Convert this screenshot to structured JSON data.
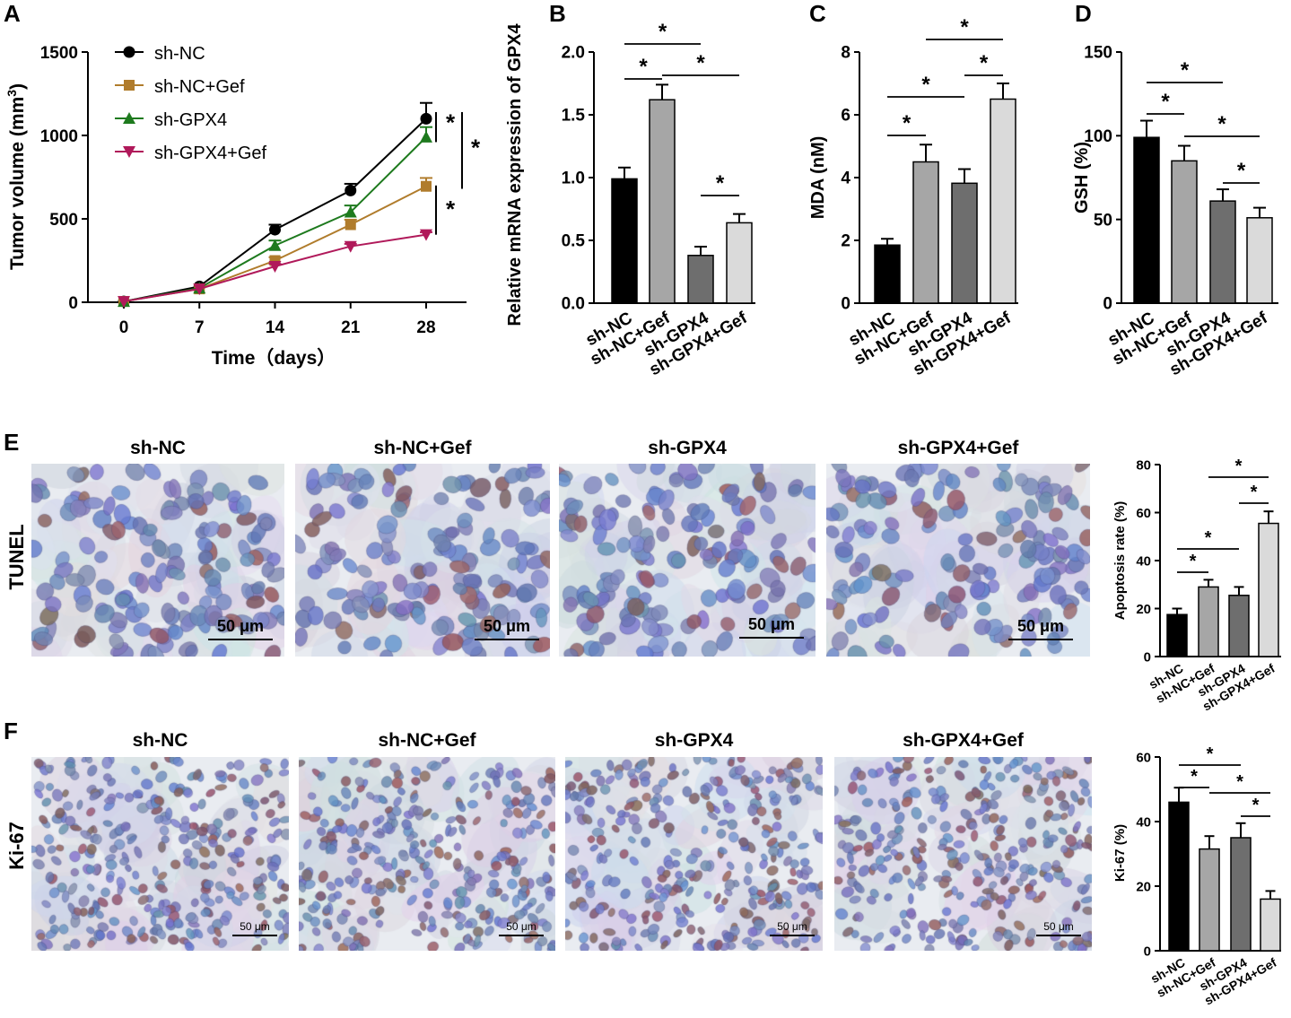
{
  "panels": {
    "A": "A",
    "B": "B",
    "C": "C",
    "D": "D",
    "E": "E",
    "F": "F"
  },
  "colors": {
    "sh_nc": "#000000",
    "sh_nc_gef": "#b07c2c",
    "sh_gpx4": "#1e7a1e",
    "sh_gpx4_gef": "#b0195a",
    "bar_sh_nc": "#000000",
    "bar_sh_nc_gef": "#a6a6a6",
    "bar_sh_gpx4": "#6e6e6e",
    "bar_sh_gpx4_gef": "#dadada"
  },
  "row_labels": {
    "tunel": "TUNEL",
    "ki67": "Ki-67"
  },
  "image_titles": {
    "E": [
      "sh-NC",
      "sh-NC+Gef",
      "sh-GPX4",
      "sh-GPX4+Gef"
    ],
    "F": [
      "sh-NC",
      "sh-NC+Gef",
      "sh-GPX4",
      "sh-GPX4+Gef"
    ]
  },
  "scale_bars": {
    "E": "50 μm",
    "F": "50 μm"
  },
  "chart_data": [
    {
      "id": "A",
      "type": "line",
      "xlabel": "Time（days）",
      "ylabel": "Tumor volume (mm3)",
      "x": [
        0,
        7,
        14,
        21,
        28
      ],
      "xlim": [
        0,
        28
      ],
      "ylim": [
        0,
        1500
      ],
      "yticks": [
        0,
        500,
        1000,
        1500
      ],
      "legend": "top-left",
      "series": [
        {
          "name": "sh-NC",
          "marker": "circle",
          "values": [
            5,
            95,
            435,
            670,
            1100
          ],
          "errors": [
            5,
            10,
            30,
            40,
            95
          ]
        },
        {
          "name": "sh-NC+Gef",
          "marker": "square",
          "values": [
            5,
            80,
            250,
            465,
            695
          ],
          "errors": [
            5,
            8,
            20,
            30,
            50
          ]
        },
        {
          "name": "sh-GPX4",
          "marker": "triangle-up",
          "values": [
            5,
            85,
            340,
            540,
            990
          ],
          "errors": [
            5,
            8,
            30,
            40,
            60
          ]
        },
        {
          "name": "sh-GPX4+Gef",
          "marker": "triangle-down",
          "values": [
            5,
            80,
            215,
            335,
            405
          ],
          "errors": [
            5,
            6,
            15,
            15,
            15
          ]
        }
      ],
      "annotations": [
        "*",
        "*",
        "*"
      ]
    },
    {
      "id": "B",
      "type": "bar",
      "ylabel": "Relative mRNA expression of GPX4",
      "categories": [
        "sh-NC",
        "sh-NC+Gef",
        "sh-GPX4",
        "sh-GPX4+Gef"
      ],
      "values": [
        0.99,
        1.62,
        0.38,
        0.64
      ],
      "errors": [
        0.09,
        0.12,
        0.07,
        0.07
      ],
      "ylim": [
        0,
        2.0
      ],
      "yticks": [
        "0.0",
        "0.5",
        "1.0",
        "1.5",
        "2.0"
      ],
      "significance": [
        {
          "from": 0,
          "to": 1,
          "label": "*"
        },
        {
          "from": 0,
          "to": 2,
          "label": "*"
        },
        {
          "from": 1,
          "to": 3,
          "label": "*"
        },
        {
          "from": 2,
          "to": 3,
          "label": "*"
        }
      ]
    },
    {
      "id": "C",
      "type": "bar",
      "ylabel": "MDA (nM)",
      "categories": [
        "sh-NC",
        "sh-NC+Gef",
        "sh-GPX4",
        "sh-GPX4+Gef"
      ],
      "values": [
        1.85,
        4.5,
        3.82,
        6.5
      ],
      "errors": [
        0.2,
        0.55,
        0.45,
        0.5
      ],
      "ylim": [
        0,
        8
      ],
      "yticks": [
        "0",
        "2",
        "4",
        "6",
        "8"
      ],
      "significance": [
        {
          "from": 0,
          "to": 1,
          "label": "*"
        },
        {
          "from": 0,
          "to": 2,
          "label": "*"
        },
        {
          "from": 2,
          "to": 3,
          "label": "*"
        },
        {
          "from": 1,
          "to": 3,
          "label": "*"
        }
      ]
    },
    {
      "id": "D",
      "type": "bar",
      "ylabel": "GSH (%)",
      "categories": [
        "sh-NC",
        "sh-NC+Gef",
        "sh-GPX4",
        "sh-GPX4+Gef"
      ],
      "values": [
        99,
        85,
        61,
        51
      ],
      "errors": [
        10,
        9,
        7,
        6
      ],
      "ylim": [
        0,
        150
      ],
      "yticks": [
        "0",
        "50",
        "100",
        "150"
      ],
      "significance": [
        {
          "from": 0,
          "to": 1,
          "label": "*"
        },
        {
          "from": 0,
          "to": 2,
          "label": "*"
        },
        {
          "from": 1,
          "to": 3,
          "label": "*"
        },
        {
          "from": 2,
          "to": 3,
          "label": "*"
        }
      ]
    },
    {
      "id": "E",
      "type": "bar",
      "ylabel": "Apoptosis rate (%)",
      "categories": [
        "sh-NC",
        "sh-NC+Gef",
        "sh-GPX4",
        "sh-GPX4+Gef"
      ],
      "values": [
        17.5,
        29,
        25.5,
        55.5
      ],
      "errors": [
        2.5,
        3,
        3.5,
        5
      ],
      "ylim": [
        0,
        80
      ],
      "yticks": [
        "0",
        "20",
        "40",
        "60",
        "80"
      ],
      "significance": [
        {
          "from": 0,
          "to": 1,
          "label": "*"
        },
        {
          "from": 0,
          "to": 2,
          "label": "*"
        },
        {
          "from": 2,
          "to": 3,
          "label": "*"
        },
        {
          "from": 1,
          "to": 3,
          "label": "*"
        }
      ]
    },
    {
      "id": "F",
      "type": "bar",
      "ylabel": "Ki-67 (%)",
      "categories": [
        "sh-NC",
        "sh-NC+Gef",
        "sh-GPX4",
        "sh-GPX4+Gef"
      ],
      "values": [
        46,
        31.5,
        35,
        16
      ],
      "errors": [
        4.5,
        4,
        4.5,
        2.5
      ],
      "ylim": [
        0,
        60
      ],
      "yticks": [
        "0",
        "20",
        "40",
        "60"
      ],
      "significance": [
        {
          "from": 0,
          "to": 1,
          "label": "*"
        },
        {
          "from": 0,
          "to": 2,
          "label": "*"
        },
        {
          "from": 1,
          "to": 3,
          "label": "*"
        },
        {
          "from": 2,
          "to": 3,
          "label": "*"
        }
      ]
    }
  ]
}
